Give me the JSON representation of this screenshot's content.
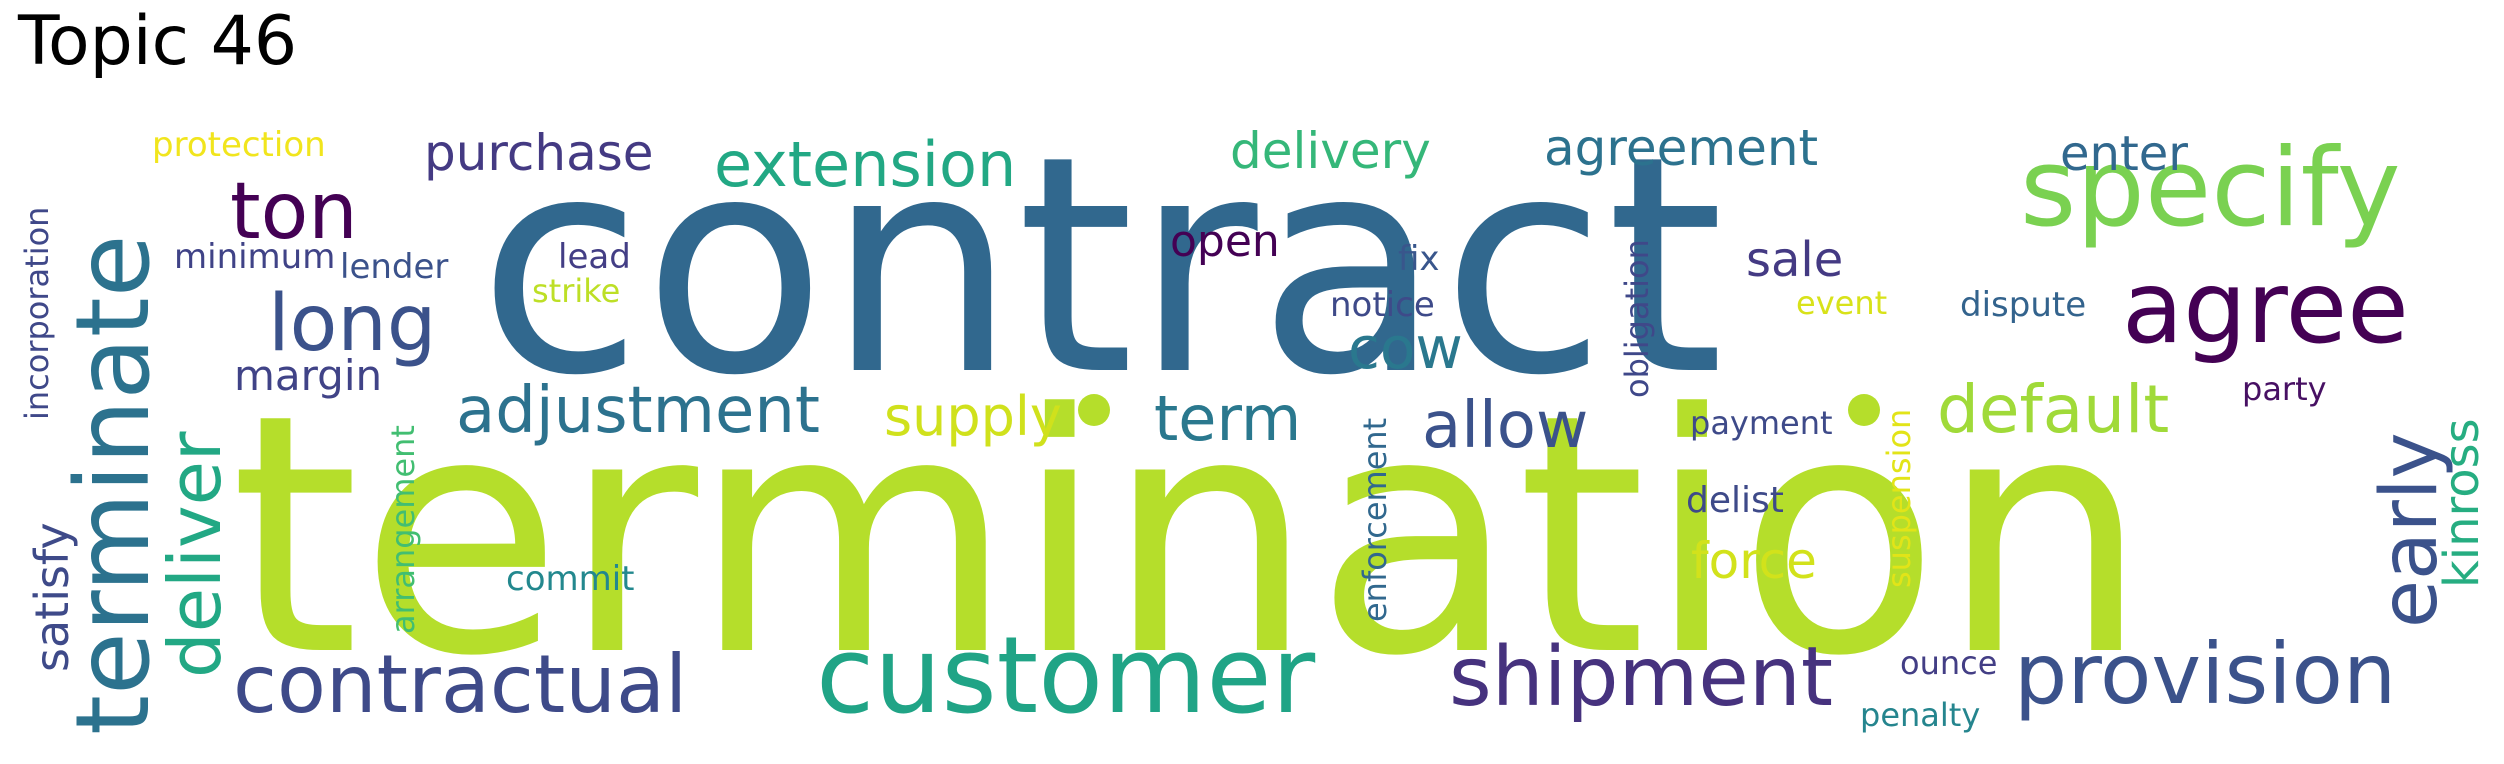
{
  "title": "Topic 46",
  "words": [
    {
      "text": "termination",
      "color": "#b5de2b"
    },
    {
      "text": "contract",
      "color": "#31688e"
    },
    {
      "text": "specify",
      "color": "#7ad151"
    },
    {
      "text": "agree",
      "color": "#440154"
    },
    {
      "text": "customer",
      "color": "#20a486"
    },
    {
      "text": "contractual",
      "color": "#3e4a89"
    },
    {
      "text": "provision",
      "color": "#3b528b"
    },
    {
      "text": "shipment",
      "color": "#46327e"
    },
    {
      "text": "terminate",
      "color": "#2c728e"
    },
    {
      "text": "deliver",
      "color": "#22a884"
    },
    {
      "text": "early",
      "color": "#3b528b"
    },
    {
      "text": "ton",
      "color": "#440154"
    },
    {
      "text": "long",
      "color": "#3b528b"
    },
    {
      "text": "extension",
      "color": "#22a884"
    },
    {
      "text": "adjustment",
      "color": "#2c728e"
    },
    {
      "text": "default",
      "color": "#a0da39"
    },
    {
      "text": "allow",
      "color": "#3b528b"
    },
    {
      "text": "term",
      "color": "#2a788e"
    },
    {
      "text": "cow",
      "color": "#2a788e"
    },
    {
      "text": "purchase",
      "color": "#443a83"
    },
    {
      "text": "delivery",
      "color": "#35b779"
    },
    {
      "text": "agreement",
      "color": "#2c728e"
    },
    {
      "text": "enter",
      "color": "#31688e"
    },
    {
      "text": "supply",
      "color": "#d0e11c"
    },
    {
      "text": "force",
      "color": "#d2e21b"
    },
    {
      "text": "margin",
      "color": "#404387"
    },
    {
      "text": "kinross",
      "color": "#26ad81"
    },
    {
      "text": "satisfy",
      "color": "#3e4a89"
    },
    {
      "text": "sale",
      "color": "#443a83"
    },
    {
      "text": "open",
      "color": "#440154"
    },
    {
      "text": "protection",
      "color": "#f1e51d"
    },
    {
      "text": "minimum",
      "color": "#404387"
    },
    {
      "text": "lender",
      "color": "#3b528b"
    },
    {
      "text": "lead",
      "color": "#433e85"
    },
    {
      "text": "strike",
      "color": "#bddf26"
    },
    {
      "text": "fix",
      "color": "#39568c"
    },
    {
      "text": "notice",
      "color": "#3e4a89"
    },
    {
      "text": "event",
      "color": "#d8e219"
    },
    {
      "text": "dispute",
      "color": "#33638d"
    },
    {
      "text": "party",
      "color": "#471063"
    },
    {
      "text": "payment",
      "color": "#3e4a89"
    },
    {
      "text": "delist",
      "color": "#3e4a89"
    },
    {
      "text": "commit",
      "color": "#23888e"
    },
    {
      "text": "ounce",
      "color": "#433e85"
    },
    {
      "text": "penalty",
      "color": "#25858e"
    },
    {
      "text": "incorporation",
      "color": "#3f4889"
    },
    {
      "text": "arrangement",
      "color": "#42be71"
    },
    {
      "text": "enforcement",
      "color": "#31688e"
    },
    {
      "text": "obligation",
      "color": "#3f4889"
    },
    {
      "text": "suspension",
      "color": "#e2e418"
    }
  ]
}
